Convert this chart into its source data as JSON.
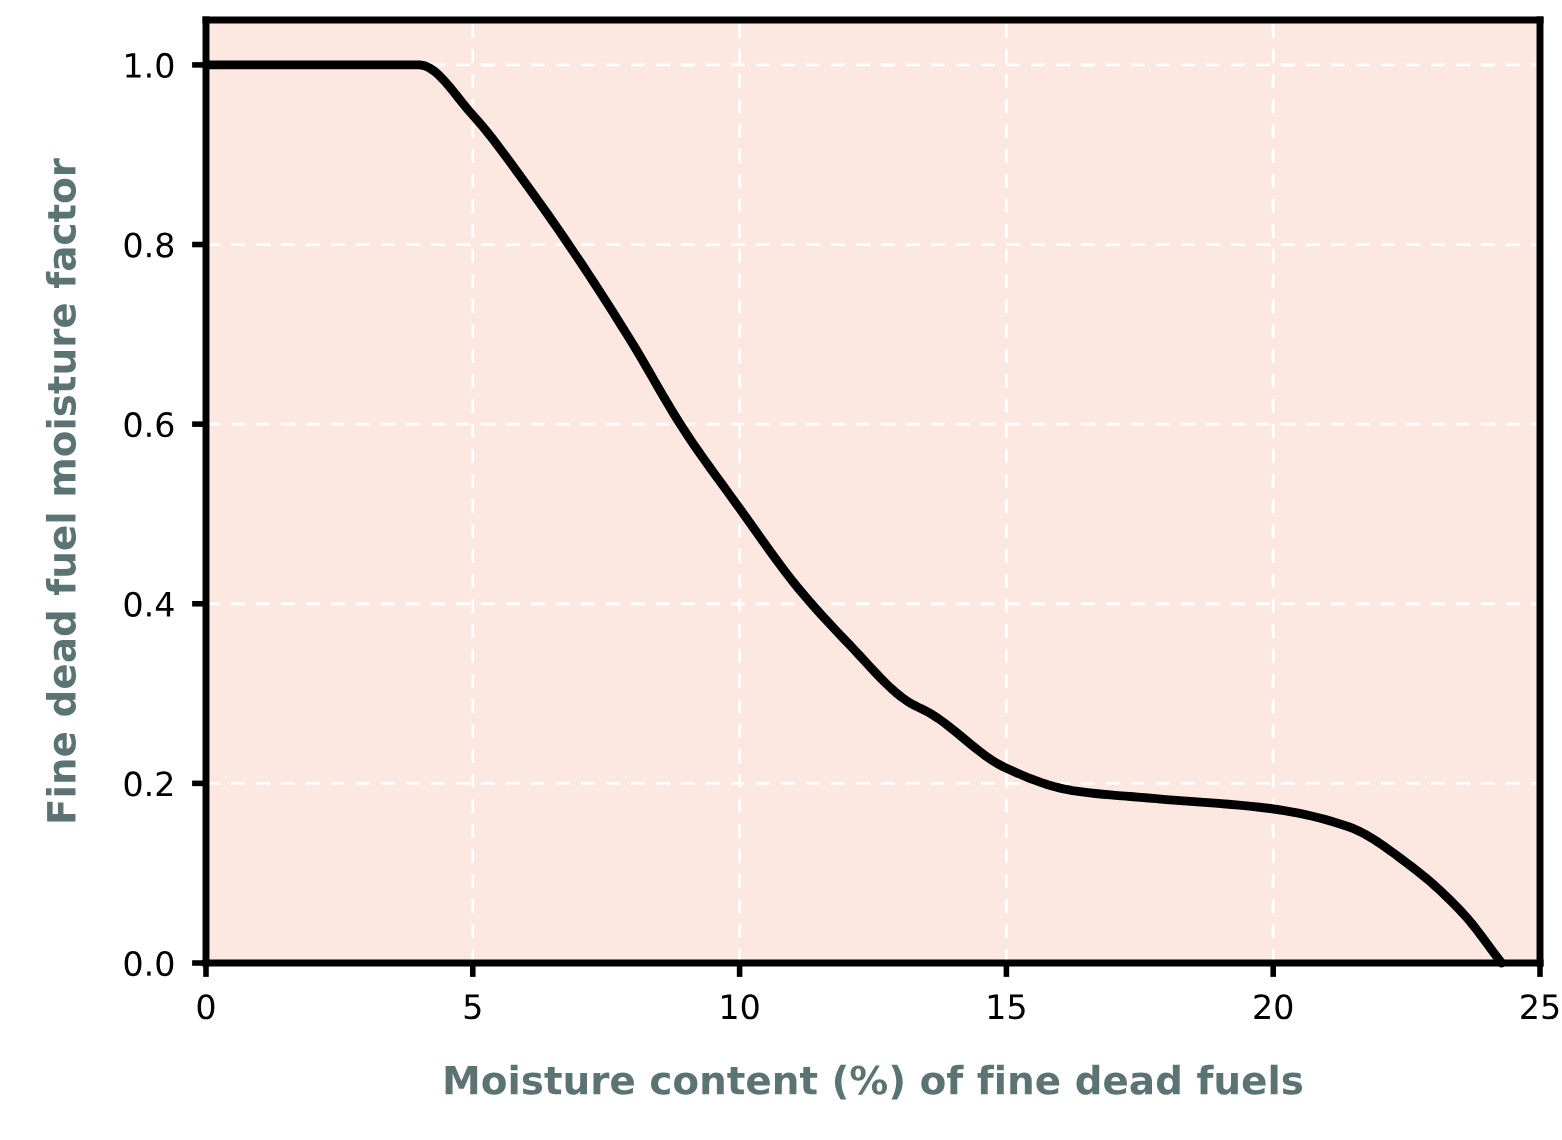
{
  "chart_data": {
    "type": "line",
    "xlabel": "Moisture content (%) of fine dead fuels",
    "ylabel": "Fine dead fuel moisture factor",
    "x": [
      0,
      4.0,
      5,
      6.05,
      7.01,
      7.97,
      8.93,
      9.99,
      11.09,
      12.05,
      13.13,
      13.6,
      14.96,
      16.24,
      17.8,
      19.94,
      21.4,
      22.6,
      23.56,
      24.28
    ],
    "series": [
      {
        "color": "#000000",
        "values": [
          1.0,
          1.0,
          0.944,
          0.863,
          0.781,
          0.692,
          0.596,
          0.507,
          0.418,
          0.355,
          0.292,
          0.277,
          0.218,
          0.192,
          0.183,
          0.172,
          0.152,
          0.107,
          0.055,
          0.0
        ]
      }
    ],
    "xlim": [
      0,
      25
    ],
    "xticks": [
      0,
      5,
      10,
      15,
      20,
      25
    ],
    "ylim": [
      0,
      1.05
    ],
    "yticks": [
      {
        "value": 0,
        "label": "0.0"
      },
      0.2,
      0.4,
      0.6,
      0.8,
      {
        "value": 1,
        "label": "1.0"
      }
    ],
    "grid": true,
    "marker": "none",
    "line_style": "solid"
  }
}
